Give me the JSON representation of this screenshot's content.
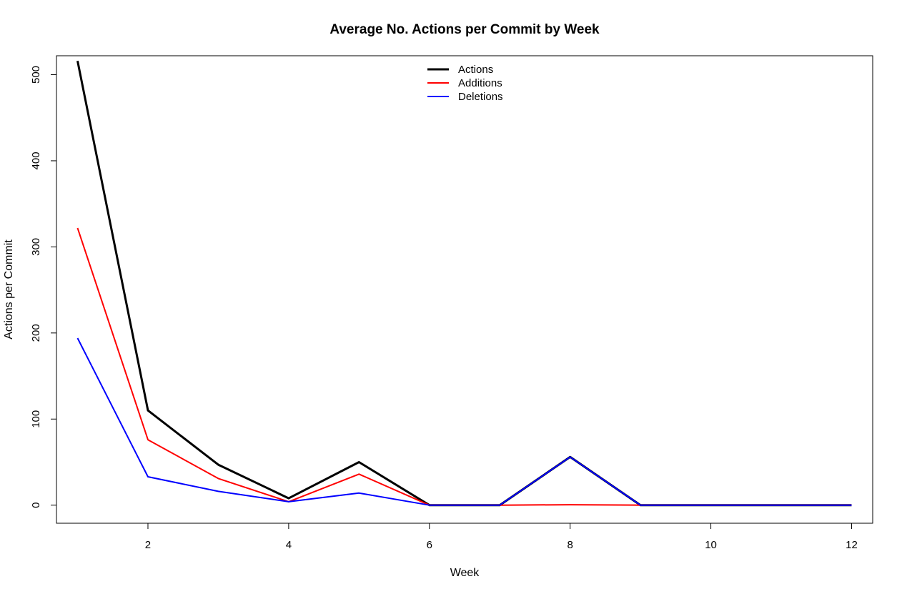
{
  "chart_data": {
    "type": "line",
    "title": "Average No. Actions per Commit by Week",
    "xlabel": "Week",
    "ylabel": "Actions per Commit",
    "x": [
      1,
      2,
      3,
      4,
      5,
      6,
      7,
      8,
      9,
      10,
      11,
      12
    ],
    "xlim": [
      0.7,
      12.3
    ],
    "ylim": [
      -21,
      522
    ],
    "xticks": [
      2,
      4,
      6,
      8,
      10,
      12
    ],
    "yticks": [
      0,
      100,
      200,
      300,
      400,
      500
    ],
    "grid": false,
    "legend_position": "top-center",
    "series": [
      {
        "name": "Actions",
        "color": "#000000",
        "values": [
          516,
          110,
          47,
          8,
          50,
          0,
          0,
          56,
          0,
          0,
          0,
          0
        ]
      },
      {
        "name": "Additions",
        "color": "#ff0000",
        "values": [
          322,
          76,
          31,
          4,
          36,
          0,
          0,
          0.5,
          0,
          0,
          0,
          0
        ]
      },
      {
        "name": "Deletions",
        "color": "#0000ff",
        "values": [
          194,
          33,
          16,
          4,
          14,
          0,
          0,
          56,
          0,
          0,
          0,
          0
        ]
      }
    ]
  }
}
